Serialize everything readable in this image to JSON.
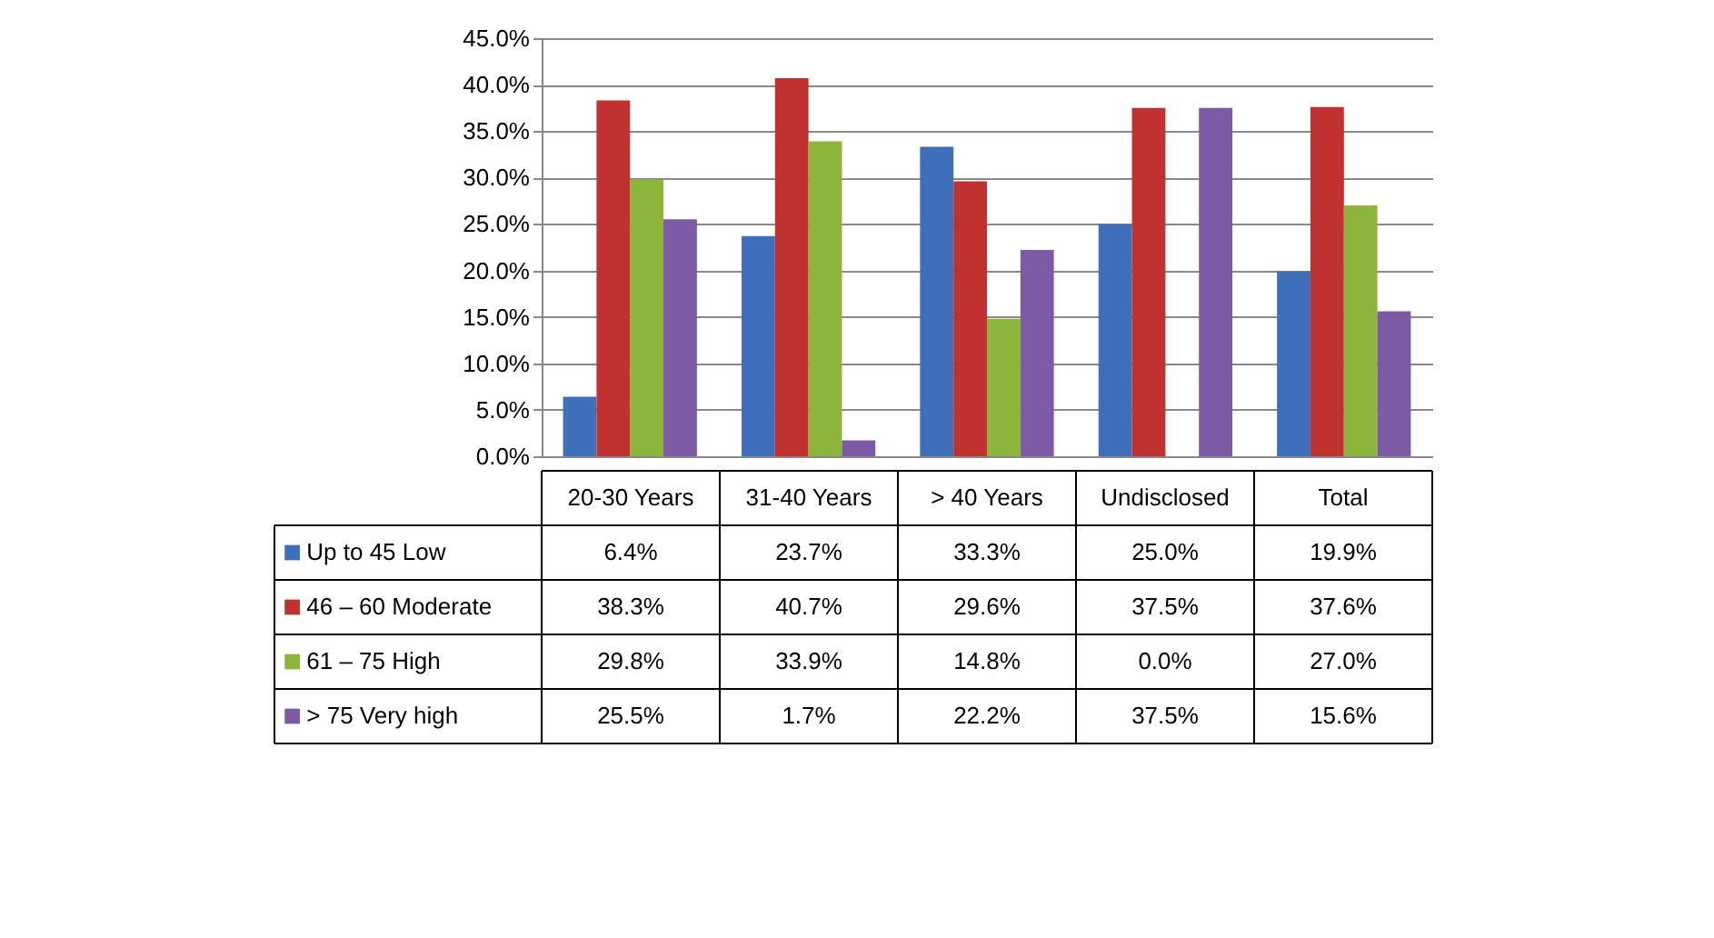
{
  "chart_data": {
    "type": "bar",
    "categories": [
      "20-30 Years",
      "31-40 Years",
      "> 40 Years",
      "Undisclosed",
      "Total"
    ],
    "series": [
      {
        "name": "Up to 45 Low",
        "color": "#3f6fba",
        "values": [
          6.4,
          23.7,
          33.3,
          25.0,
          19.9
        ],
        "value_labels": [
          "6.4%",
          "23.7%",
          "33.3%",
          "25.0%",
          "19.9%"
        ]
      },
      {
        "name": "46 – 60 Moderate",
        "color": "#c0312f",
        "values": [
          38.3,
          40.7,
          29.6,
          37.5,
          37.6
        ],
        "value_labels": [
          "38.3%",
          "40.7%",
          "29.6%",
          "37.5%",
          "37.6%"
        ]
      },
      {
        "name": "61 – 75 High",
        "color": "#8db53c",
        "values": [
          29.8,
          33.9,
          14.8,
          0.0,
          27.0
        ],
        "value_labels": [
          "29.8%",
          "33.9%",
          "14.8%",
          "0.0%",
          "27.0%"
        ]
      },
      {
        "name": "> 75 Very high",
        "color": "#7d5aa6",
        "values": [
          25.5,
          1.7,
          22.2,
          37.5,
          15.6
        ],
        "value_labels": [
          "25.5%",
          "1.7%",
          "22.2%",
          "37.5%",
          "15.6%"
        ]
      }
    ],
    "ylim": [
      0,
      45
    ],
    "yticks": [
      {
        "value": 0,
        "label": "0.0%"
      },
      {
        "value": 5,
        "label": "5.0%"
      },
      {
        "value": 10,
        "label": "10.0%"
      },
      {
        "value": 15,
        "label": "15.0%"
      },
      {
        "value": 20,
        "label": "20.0%"
      },
      {
        "value": 25,
        "label": "25.0%"
      },
      {
        "value": 30,
        "label": "30.0%"
      },
      {
        "value": 35,
        "label": "35.0%"
      },
      {
        "value": 40,
        "label": "40.0%"
      },
      {
        "value": 45,
        "label": "45.0%"
      }
    ],
    "grid": "y",
    "legend": "bottom"
  }
}
